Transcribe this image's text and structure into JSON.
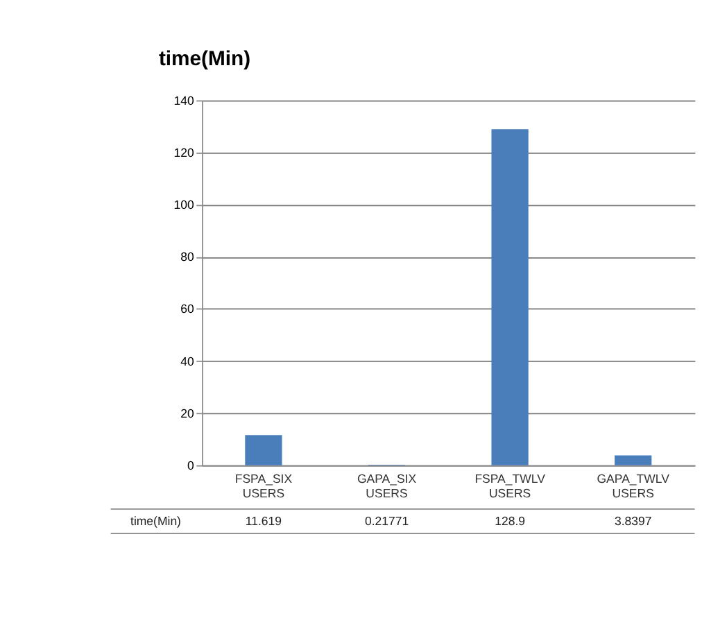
{
  "chart_data": {
    "type": "bar",
    "title": "time(Min)",
    "categories": [
      "FSPA_SIX USERS",
      "GAPA_SIX USERS",
      "FSPA_TWLV USERS",
      "GAPA_TWLV USERS"
    ],
    "series": [
      {
        "name": "time(Min)",
        "color": "#4a7ebb",
        "values": [
          11.619,
          0.21771,
          128.9,
          3.8397
        ]
      }
    ],
    "ylim": [
      0,
      140
    ],
    "yticks": [
      0,
      20,
      40,
      60,
      80,
      100,
      120,
      140
    ],
    "grid": "y",
    "data_labels": true
  }
}
